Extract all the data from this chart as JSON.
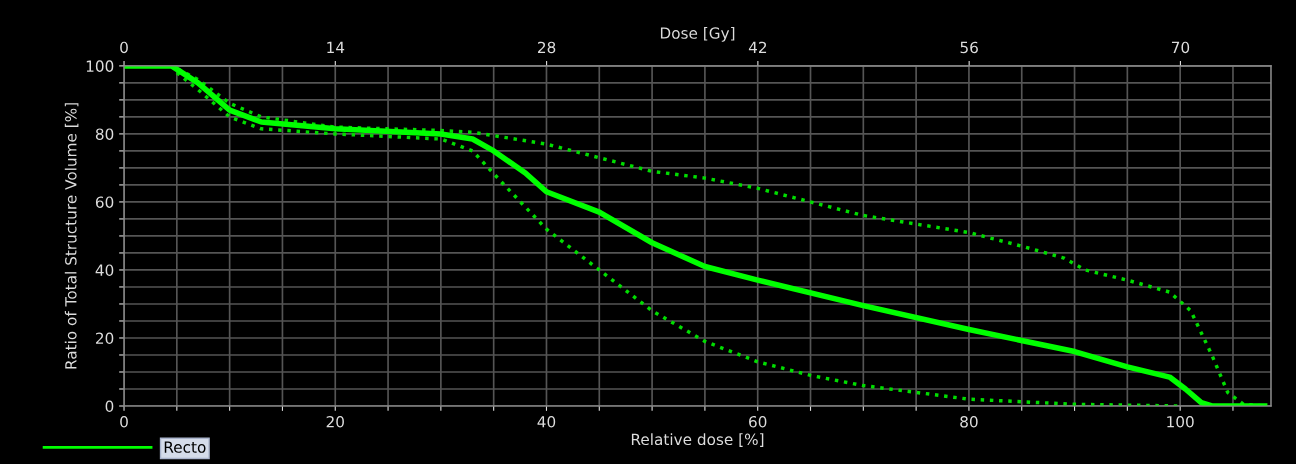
{
  "chart_data": {
    "type": "line",
    "xlabel": "Relative dose [%]",
    "ylabel": "Ratio of Total Structure Volume [%]",
    "x2label": "Dose [Gy]",
    "xlim": [
      0,
      108.6
    ],
    "xticks": [
      0,
      {
        "value": 5,
        "label": null
      },
      {
        "value": 10,
        "label": null
      },
      {
        "value": 15,
        "label": null
      },
      20,
      {
        "value": 25,
        "label": null
      },
      {
        "value": 30,
        "label": null
      },
      {
        "value": 35,
        "label": null
      },
      40,
      {
        "value": 45,
        "label": null
      },
      {
        "value": 50,
        "label": null
      },
      {
        "value": 55,
        "label": null
      },
      60,
      {
        "value": 65,
        "label": null
      },
      {
        "value": 70,
        "label": null
      },
      {
        "value": 75,
        "label": null
      },
      80,
      {
        "value": 85,
        "label": null
      },
      {
        "value": 90,
        "label": null
      },
      {
        "value": 95,
        "label": null
      },
      100,
      {
        "value": 105,
        "label": null
      }
    ],
    "x2lim": [
      0,
      76
    ],
    "x2ticks": [
      0,
      14,
      28,
      42,
      56,
      70
    ],
    "ylim": [
      0,
      100
    ],
    "yticks": [
      0,
      {
        "value": 5,
        "label": null
      },
      {
        "value": 10,
        "label": null
      },
      {
        "value": 15,
        "label": null
      },
      20,
      {
        "value": 25,
        "label": null
      },
      {
        "value": 30,
        "label": null
      },
      {
        "value": 35,
        "label": null
      },
      40,
      {
        "value": 45,
        "label": null
      },
      {
        "value": 50,
        "label": null
      },
      {
        "value": 55,
        "label": null
      },
      60,
      {
        "value": 65,
        "label": null
      },
      {
        "value": 70,
        "label": null
      },
      {
        "value": 75,
        "label": null
      },
      80,
      {
        "value": 85,
        "label": null
      },
      {
        "value": 90,
        "label": null
      },
      {
        "value": 95,
        "label": null
      },
      100
    ],
    "grid": true,
    "legend": "bottom left",
    "series": [
      {
        "color": "#00dd00",
        "line_style": "dotted",
        "x": [
          0,
          4.5,
          7,
          10,
          13,
          20,
          30,
          33,
          36,
          40,
          45,
          50,
          55,
          60,
          70,
          80,
          85,
          89,
          91,
          95,
          99,
          101,
          103,
          104.5,
          106,
          108
        ],
        "values": [
          100,
          100,
          96,
          89,
          85,
          82,
          81,
          80.5,
          79,
          77,
          73,
          69,
          67,
          64,
          56,
          51,
          47,
          43.5,
          40,
          37,
          33.5,
          28,
          15,
          4,
          0.5,
          0
        ]
      },
      {
        "color": "#00dd00",
        "line_style": "dotted",
        "x": [
          5,
          7,
          10,
          13,
          20,
          30,
          33,
          36,
          40,
          45,
          50,
          55,
          60,
          65,
          70,
          80,
          90,
          100
        ],
        "values": [
          98,
          93,
          85,
          81.5,
          80,
          78.5,
          75,
          65,
          52,
          40,
          28,
          19,
          13,
          9,
          6,
          2,
          0.5,
          0
        ]
      },
      {
        "name": "Recto",
        "color": "#00ff00",
        "line_style": "solid",
        "x": [
          0,
          4.5,
          7,
          10,
          13,
          20,
          30,
          33,
          35,
          38,
          40,
          45,
          50,
          55,
          60,
          70,
          80,
          90,
          95,
          99,
          100.5,
          102,
          103,
          108
        ],
        "values": [
          100,
          100,
          95,
          87,
          83.5,
          81.5,
          80,
          78.5,
          75,
          68.5,
          63,
          57,
          48,
          41,
          37,
          29.5,
          22.5,
          16,
          11.5,
          8.5,
          5,
          1,
          0,
          0
        ]
      }
    ]
  }
}
